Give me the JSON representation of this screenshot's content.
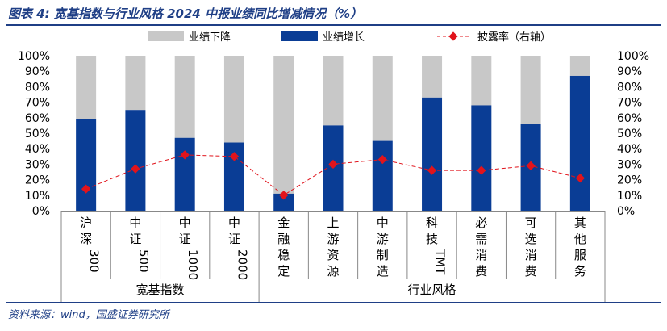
{
  "header": {
    "title": "图表 4:  宽基指数与行业风格 2024 中报业绩同比增减情况（%）"
  },
  "footer": {
    "source": "资料来源：wind，国盛证券研究所"
  },
  "colors": {
    "decline": "#c8c8c8",
    "growth": "#0a3d95",
    "ratio": "#e1141c",
    "brand": "#1f3f86",
    "axis": "#888888",
    "text": "#000000"
  },
  "chart_data": {
    "type": "bar",
    "stacked": true,
    "categories": [
      "沪深300",
      "中证500",
      "中证1000",
      "中证2000",
      "金融稳定",
      "上游资源",
      "中游制造",
      "科技TMT",
      "必需消费",
      "可选消费",
      "其他服务"
    ],
    "category_labels": [
      [
        "沪",
        "深",
        "300"
      ],
      [
        "中",
        "证",
        "500"
      ],
      [
        "中",
        "证",
        "1000"
      ],
      [
        "中",
        "证",
        "2000"
      ],
      [
        "金",
        "融",
        "稳",
        "定"
      ],
      [
        "上",
        "游",
        "资",
        "源"
      ],
      [
        "中",
        "游",
        "制",
        "造"
      ],
      [
        "科",
        "技",
        "TMT"
      ],
      [
        "必",
        "需",
        "消",
        "费"
      ],
      [
        "可",
        "选",
        "消",
        "费"
      ],
      [
        "其",
        "他",
        "服",
        "务"
      ]
    ],
    "groups": [
      {
        "label": "宽基指数",
        "start": 0,
        "end": 3
      },
      {
        "label": "行业风格",
        "start": 4,
        "end": 10
      }
    ],
    "series": [
      {
        "name": "业绩增长",
        "kind": "bar",
        "values": [
          59,
          65,
          47,
          44,
          11,
          55,
          45,
          73,
          68,
          56,
          87
        ]
      },
      {
        "name": "业绩下降",
        "kind": "bar",
        "values": [
          41,
          35,
          53,
          56,
          89,
          45,
          55,
          27,
          32,
          44,
          13
        ]
      },
      {
        "name": "披露率（右轴）",
        "kind": "line",
        "values": [
          14,
          27,
          36,
          35,
          10,
          30,
          33,
          26,
          26,
          29,
          21
        ]
      }
    ],
    "legend": [
      "业绩下降",
      "业绩增长",
      "披露率（右轴）"
    ],
    "y_left": {
      "min": 0,
      "max": 100,
      "step": 10,
      "format": "percent"
    },
    "y_right": {
      "min": 0,
      "max": 100,
      "step": 10,
      "format": "percent"
    },
    "title": "宽基指数与行业风格 2024 中报业绩同比增减情况（%）",
    "xlabel": "",
    "ylabel": ""
  }
}
